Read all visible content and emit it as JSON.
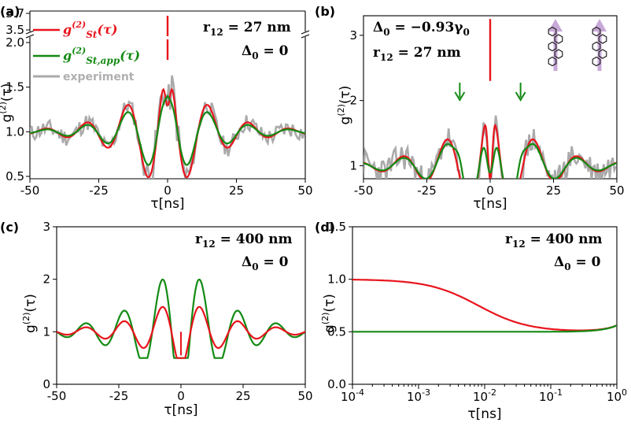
{
  "figure": {
    "colors": {
      "red": "#e8141c",
      "green": "#138a13",
      "gray": "#aaaaaa",
      "axis": "#000000",
      "molecule": "#c8a8d8"
    },
    "icons": [
      "molecule-chain-icon",
      "molecule-chain-icon"
    ]
  },
  "chart_data": [
    {
      "panel": "(a)",
      "type": "line",
      "xlabel": "τ[ns]",
      "ylabel": "g(2)(τ)",
      "xlim": [
        -50,
        50
      ],
      "ylim_lower": [
        0.5,
        2.0
      ],
      "ylim_upper_ticks": [
        "3.5",
        "3.7"
      ],
      "broken_y_axis": true,
      "xticks": [
        "-50",
        "-25",
        "0",
        "25",
        "50"
      ],
      "yticks": [
        "0.5",
        "1.0",
        "1.5",
        "2.0"
      ],
      "annotations": [
        "r12 = 27 nm",
        "Δ0 = 0"
      ],
      "legend": {
        "position": "top-left",
        "entries": [
          "g(2)St(τ)",
          "g(2)St,app(τ)",
          "experiment"
        ]
      },
      "series": [
        {
          "name": "g(2)St(τ)",
          "color": "#e8141c",
          "model": {
            "A": 0.85,
            "f": 0.068,
            "tau": 14,
            "dip": 0.55,
            "dipw": 0.9
          },
          "x": [
            -50,
            -25,
            -15,
            -7,
            0,
            7,
            15,
            25,
            50
          ],
          "y": [
            1.0,
            0.98,
            1.09,
            1.85,
            3.7,
            1.85,
            1.09,
            0.98,
            1.0
          ]
        },
        {
          "name": "g(2)St,app(τ)",
          "color": "#138a13",
          "model": {
            "A": 0.62,
            "f": 0.068,
            "tau": 14,
            "dip": 0.22,
            "dipw": 1.5
          },
          "x": [
            -50,
            -25,
            -15,
            -7,
            0,
            7,
            15,
            25,
            50
          ],
          "y": [
            1.0,
            0.99,
            1.06,
            1.65,
            1.8,
            1.65,
            1.06,
            0.99,
            1.0
          ]
        },
        {
          "name": "experiment",
          "color": "#aaaaaa",
          "noisy": true,
          "noise": 0.1,
          "seed": 11
        }
      ]
    },
    {
      "panel": "(b)",
      "type": "line",
      "xlabel": "τ[ns]",
      "ylabel": "g(2)(τ)",
      "xlim": [
        -50,
        50
      ],
      "ylim": [
        0.8,
        3.3
      ],
      "xticks": [
        "-50",
        "-25",
        "0",
        "25",
        "50"
      ],
      "yticks": [
        "1",
        "2",
        "3"
      ],
      "annotations": [
        "Δ0 = −0.93γ0",
        "r12 = 27 nm"
      ],
      "series": [
        {
          "name": "red",
          "color": "#e8141c",
          "model": {
            "A": 1.1,
            "f": 0.058,
            "tau": 17,
            "dip": 1.3,
            "dipw": 0.9
          },
          "x": [
            -50,
            -25,
            -10,
            -4,
            0,
            4,
            10,
            25,
            50
          ],
          "y": [
            1.0,
            1.05,
            1.85,
            2.75,
            3.2,
            2.75,
            1.85,
            1.05,
            1.0
          ]
        },
        {
          "name": "green",
          "color": "#138a13",
          "model": {
            "A": 0.9,
            "f": 0.058,
            "tau": 17,
            "dip": 1.0,
            "dipw": 1.4,
            "shoulder": 0.25
          },
          "x": [
            -50,
            -25,
            -12,
            -4,
            0,
            4,
            12,
            25,
            50
          ],
          "y": [
            1.0,
            1.03,
            1.7,
            2.45,
            1.6,
            2.45,
            1.7,
            1.03,
            1.0
          ]
        },
        {
          "name": "experiment",
          "color": "#aaaaaa",
          "noisy": true,
          "noise": 0.22,
          "seed": 23
        }
      ]
    },
    {
      "panel": "(c)",
      "type": "line",
      "xlabel": "τ[ns]",
      "ylabel": "g(2)(τ)",
      "xlim": [
        -50,
        50
      ],
      "ylim": [
        0,
        3
      ],
      "xticks": [
        "-50",
        "-25",
        "0",
        "25",
        "50"
      ],
      "yticks": [
        "0",
        "1",
        "2",
        "3"
      ],
      "annotations": [
        "r12 = 400 nm",
        "Δ0 = 0"
      ],
      "series": [
        {
          "name": "red",
          "color": "#e8141c",
          "model": {
            "f": 0.065,
            "A": 0.72,
            "tau": 18
          },
          "x": [
            -50,
            -23,
            -7,
            0,
            7,
            23,
            50
          ],
          "y": [
            1.0,
            1.2,
            1.65,
            0.5,
            1.65,
            1.2,
            1.0
          ]
        },
        {
          "name": "green",
          "color": "#138a13",
          "model": {
            "f": 0.065,
            "A": 1.55,
            "tau": 17
          },
          "x": [
            -50,
            -23,
            -7,
            0,
            7,
            23,
            50
          ],
          "y": [
            1.0,
            1.35,
            2.35,
            0.5,
            2.35,
            1.35,
            1.0
          ]
        }
      ]
    },
    {
      "panel": "(d)",
      "type": "line",
      "xscale": "log",
      "xlabel": "τ[ns]",
      "ylabel": "g(2)(τ)",
      "xlim": [
        0.0001,
        1
      ],
      "ylim": [
        0,
        1.5
      ],
      "xticks": [
        "10-4",
        "10-3",
        "10-2",
        "10-1",
        "100"
      ],
      "yticks": [
        "0.0",
        "0.5",
        "1.0",
        "1.5"
      ],
      "annotations": [
        "r12 = 400 nm",
        "Δ0 = 0"
      ],
      "series": [
        {
          "name": "red",
          "color": "#e8141c",
          "x": [
            0.0001,
            0.001,
            0.005,
            0.01,
            0.03,
            0.1,
            0.5,
            1
          ],
          "y": [
            1.0,
            0.98,
            0.85,
            0.72,
            0.55,
            0.5,
            0.52,
            0.56
          ]
        },
        {
          "name": "green",
          "color": "#138a13",
          "x": [
            0.0001,
            0.001,
            0.01,
            0.1,
            0.5,
            1
          ],
          "y": [
            0.5,
            0.5,
            0.5,
            0.5,
            0.52,
            0.56
          ]
        }
      ]
    }
  ]
}
